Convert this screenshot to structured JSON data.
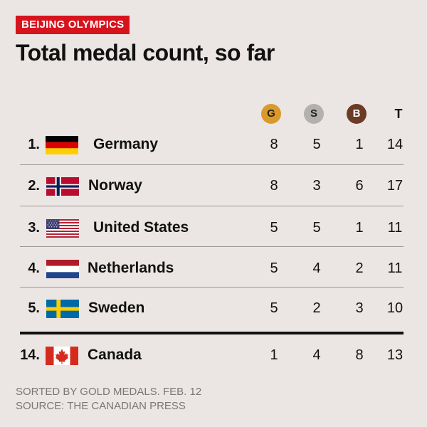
{
  "header": {
    "tag": "BEIJING OLYMPICS",
    "title": "Total medal count, so far"
  },
  "columns": {
    "gold": "G",
    "silver": "S",
    "bronze": "B",
    "total": "T"
  },
  "colors": {
    "tag_red": "#d7131e",
    "gold": "#d99a2b",
    "silver": "#b3b0ad",
    "bronze": "#6b3b26",
    "background": "#ebe6e3"
  },
  "rows": [
    {
      "rank": "1.",
      "flag_icon": "germany-flag-icon",
      "country": "Germany",
      "gold": "8",
      "silver": "5",
      "bronze": "1",
      "total": "14"
    },
    {
      "rank": "2.",
      "flag_icon": "norway-flag-icon",
      "country": "Norway",
      "gold": "8",
      "silver": "3",
      "bronze": "6",
      "total": "17"
    },
    {
      "rank": "3.",
      "flag_icon": "usa-flag-icon",
      "country": "United States",
      "gold": "5",
      "silver": "5",
      "bronze": "1",
      "total": "11"
    },
    {
      "rank": "4.",
      "flag_icon": "netherlands-flag-icon",
      "country": "Netherlands",
      "gold": "5",
      "silver": "4",
      "bronze": "2",
      "total": "11"
    },
    {
      "rank": "5.",
      "flag_icon": "sweden-flag-icon",
      "country": "Sweden",
      "gold": "5",
      "silver": "2",
      "bronze": "3",
      "total": "10"
    },
    {
      "rank": "14.",
      "flag_icon": "canada-flag-icon",
      "country": "Canada",
      "gold": "1",
      "silver": "4",
      "bronze": "8",
      "total": "13"
    }
  ],
  "footer": {
    "note": "SORTED BY GOLD MEDALS. FEB. 12",
    "source": "SOURCE: THE CANADIAN PRESS"
  }
}
